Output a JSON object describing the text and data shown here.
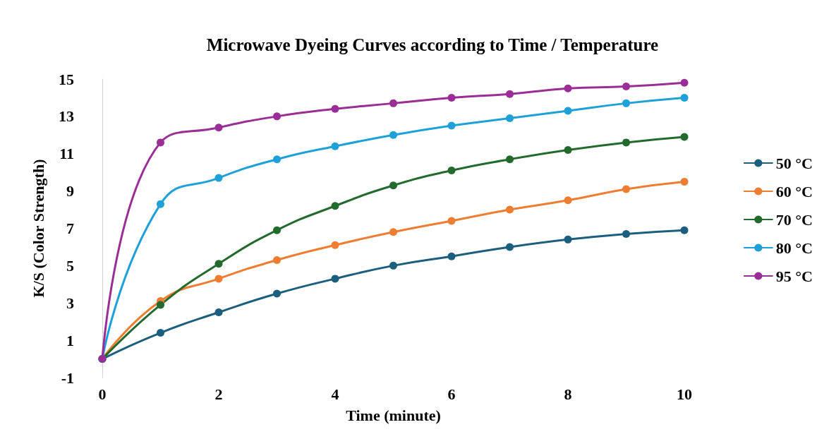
{
  "chart_data": {
    "type": "line",
    "title": "Microwave Dyeing Curves according to Time / Temperature",
    "xlabel": "Time (minute)",
    "ylabel": "K/S (Color Strength)",
    "x": [
      0,
      1,
      2,
      3,
      4,
      5,
      6,
      7,
      8,
      9,
      10
    ],
    "xlim": [
      0,
      10
    ],
    "xticks": [
      0,
      2,
      4,
      6,
      8,
      10
    ],
    "ylim": [
      -1,
      15
    ],
    "yticks": [
      -1,
      1,
      3,
      5,
      7,
      9,
      11,
      13,
      15
    ],
    "grid": false,
    "legend": "right",
    "marker": "circle",
    "line_style": "solid",
    "series": [
      {
        "name": "50 °C",
        "color": "#1b5e7e",
        "values": [
          0,
          1.4,
          2.5,
          3.5,
          4.3,
          5.0,
          5.5,
          6.0,
          6.4,
          6.7,
          6.9
        ]
      },
      {
        "name": "60 °C",
        "color": "#ed7d31",
        "values": [
          0,
          3.1,
          4.3,
          5.3,
          6.1,
          6.8,
          7.4,
          8.0,
          8.5,
          9.1,
          9.5
        ]
      },
      {
        "name": "70 °C",
        "color": "#236b2d",
        "values": [
          0,
          2.9,
          5.1,
          6.9,
          8.2,
          9.3,
          10.1,
          10.7,
          11.2,
          11.6,
          11.9
        ]
      },
      {
        "name": "80 °C",
        "color": "#1ea0d8",
        "values": [
          0,
          8.3,
          9.7,
          10.7,
          11.4,
          12.0,
          12.5,
          12.9,
          13.3,
          13.7,
          14.0
        ]
      },
      {
        "name": "95 °C",
        "color": "#9b2d96",
        "values": [
          0,
          11.6,
          12.4,
          13.0,
          13.4,
          13.7,
          14.0,
          14.2,
          14.5,
          14.6,
          14.8
        ]
      }
    ]
  }
}
